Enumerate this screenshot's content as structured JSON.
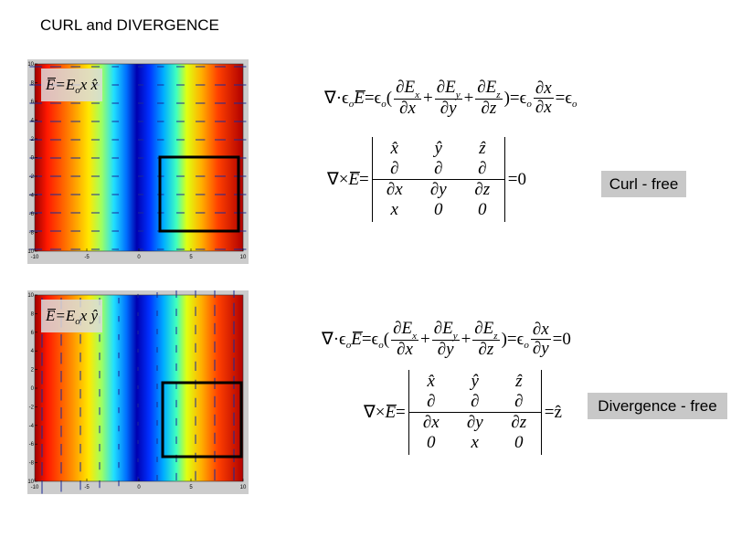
{
  "title": "CURL and DIVERGENCE",
  "plots": [
    {
      "label": {
        "e": "E",
        "b": "=E",
        "b_sub": "o",
        "rest": "x x̂"
      },
      "xlim": [
        -10,
        10
      ],
      "ylim": [
        -10,
        10
      ],
      "xticks": [
        -10,
        -5,
        0,
        5,
        10
      ],
      "yticks": [
        10,
        8,
        6,
        4,
        2,
        0,
        -2,
        -4,
        -6,
        -8,
        -10
      ]
    },
    {
      "label": {
        "e": "E",
        "b": "=E",
        "b_sub": "o",
        "rest": "x ŷ"
      },
      "xlim": [
        -10,
        10
      ],
      "ylim": [
        -10,
        10
      ],
      "xticks": [
        -10,
        -5,
        0,
        5,
        10
      ],
      "yticks": [
        10,
        8,
        6,
        4,
        2,
        0,
        -2,
        -4,
        -6,
        -8,
        -10
      ]
    }
  ],
  "divergence": [
    {
      "a": "∇·ϵ",
      "a_sub": "o",
      "e": "E",
      "b": "=ϵ",
      "b_sub": "o",
      "c": "(",
      "f1n": "∂E",
      "f1s": "x",
      "f1d": "∂x",
      "p1": "+",
      "f2n": "∂E",
      "f2s": "y",
      "f2d": "∂y",
      "p2": "+",
      "f3n": "∂E",
      "f3s": "z",
      "f3d": "∂z",
      "d": ")=ϵ",
      "d_sub": "o",
      "f4n": "∂x",
      "f4d": "∂x",
      "r": "=ϵ",
      "r_sub": "o"
    },
    {
      "a": "∇·ϵ",
      "a_sub": "o",
      "e": "E",
      "b": "=ϵ",
      "b_sub": "o",
      "c": "(",
      "f1n": "∂E",
      "f1s": "x",
      "f1d": "∂x",
      "p1": "+",
      "f2n": "∂E",
      "f2s": "y",
      "f2d": "∂y",
      "p2": "+",
      "f3n": "∂E",
      "f3s": "z",
      "f3d": "∂z",
      "d": ")=ϵ",
      "d_sub": "o",
      "f4n": "∂x",
      "f4d": "∂y",
      "r": "=0"
    }
  ],
  "curl": [
    {
      "lhs": "∇×",
      "e": "E",
      "eq": "=",
      "rows": [
        [
          "x̂",
          "ŷ",
          "ẑ"
        ],
        [
          "∂",
          "∂",
          "∂"
        ],
        [
          "∂x",
          "∂y",
          "∂z"
        ],
        [
          "x",
          "0",
          "0"
        ]
      ],
      "rhs": "=0"
    },
    {
      "lhs": "∇×",
      "e": "E",
      "eq": "=",
      "rows": [
        [
          "x̂",
          "ŷ",
          "ẑ"
        ],
        [
          "∂",
          "∂",
          "∂"
        ],
        [
          "∂x",
          "∂y",
          "∂z"
        ],
        [
          "0",
          "x",
          "0"
        ]
      ],
      "rhs": "=ẑ"
    }
  ],
  "tags": [
    "Curl - free",
    "Divergence - free"
  ]
}
